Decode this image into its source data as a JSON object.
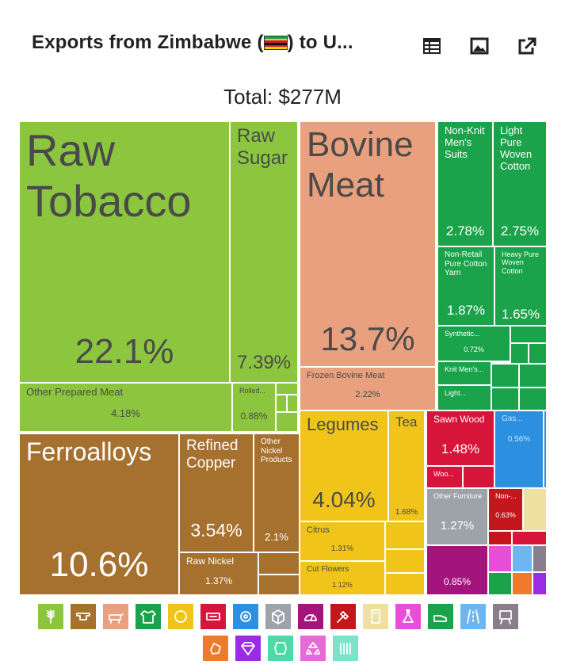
{
  "header": {
    "title_prefix": "Exports from Zimbabwe (",
    "title_suffix": ") to U...",
    "flag_icon": "zimbabwe-flag-icon",
    "buttons": [
      {
        "name": "table-view-icon"
      },
      {
        "name": "image-download-icon"
      },
      {
        "name": "open-external-icon"
      }
    ]
  },
  "total_label": "Total: $277M",
  "chart_data": {
    "type": "treemap",
    "total": "$277M",
    "tiles": [
      {
        "name": "Raw Tobacco",
        "share": "22.1%",
        "color": "#8CC63F",
        "sector": "Vegetable Products"
      },
      {
        "name": "Raw Sugar",
        "share": "7.39%",
        "color": "#8CC63F",
        "sector": "Vegetable Products"
      },
      {
        "name": "Other Prepared Meat",
        "share": "4.18%",
        "color": "#8CC63F",
        "sector": "Vegetable Products"
      },
      {
        "name": "Rolled...",
        "share": "0.88%",
        "color": "#8CC63F",
        "sector": "Vegetable Products"
      },
      {
        "name": "Bovine Meat",
        "share": "13.7%",
        "color": "#E9A07E",
        "sector": "Animal Products"
      },
      {
        "name": "Frozen Bovine Meat",
        "share": "2.22%",
        "color": "#E9A07E",
        "sector": "Animal Products"
      },
      {
        "name": "Non-Knit Men's Suits",
        "share": "2.78%",
        "color": "#1AA34A",
        "sector": "Textiles"
      },
      {
        "name": "Light Pure Woven Cotton",
        "share": "2.75%",
        "color": "#1AA34A",
        "sector": "Textiles"
      },
      {
        "name": "Non-Retail Pure Cotton Yarn",
        "share": "1.87%",
        "color": "#1AA34A",
        "sector": "Textiles"
      },
      {
        "name": "Heavy Pure Woven Cotton",
        "share": "1.65%",
        "color": "#1AA34A",
        "sector": "Textiles"
      },
      {
        "name": "Synthetic...",
        "share": "0.72%",
        "color": "#1AA34A",
        "sector": "Textiles"
      },
      {
        "name": "Knit Men's...",
        "share": "",
        "color": "#1AA34A",
        "sector": "Textiles"
      },
      {
        "name": "Light...",
        "share": "",
        "color": "#1AA34A",
        "sector": "Textiles"
      },
      {
        "name": "Ferroalloys",
        "share": "10.6%",
        "color": "#A6702E",
        "sector": "Metals"
      },
      {
        "name": "Refined Copper",
        "share": "3.54%",
        "color": "#A6702E",
        "sector": "Metals"
      },
      {
        "name": "Other Nickel Products",
        "share": "2.1%",
        "color": "#A6702E",
        "sector": "Metals"
      },
      {
        "name": "Raw Nickel",
        "share": "1.37%",
        "color": "#A6702E",
        "sector": "Metals"
      },
      {
        "name": "Legumes",
        "share": "4.04%",
        "color": "#F0C419",
        "sector": "Foodstuffs"
      },
      {
        "name": "Tea",
        "share": "1.68%",
        "color": "#F0C419",
        "sector": "Foodstuffs"
      },
      {
        "name": "Citrus",
        "share": "1.31%",
        "color": "#F0C419",
        "sector": "Foodstuffs"
      },
      {
        "name": "Cut Flowers",
        "share": "1.12%",
        "color": "#F0C419",
        "sector": "Foodstuffs"
      },
      {
        "name": "Sawn Wood",
        "share": "1.48%",
        "color": "#D7153A",
        "sector": "Wood Products"
      },
      {
        "name": "Woo...",
        "share": "",
        "color": "#D7153A",
        "sector": "Wood Products"
      },
      {
        "name": "Gas...",
        "share": "0.56%",
        "color": "#2D8FE0",
        "sector": "Mineral Products"
      },
      {
        "name": "Other Furniture",
        "share": "1.27%",
        "color": "#9EA3AA",
        "sector": "Miscellaneous"
      },
      {
        "name": "Non-...",
        "share": "0.63%",
        "color": "#C4161C",
        "sector": "Stone and Glass"
      },
      {
        "name": "",
        "share": "0.85%",
        "color": "#A3157C",
        "sector": "Instruments"
      }
    ]
  },
  "legend": [
    {
      "name": "vegetable-products-icon",
      "color": "#8CC63F"
    },
    {
      "name": "metals-icon",
      "color": "#A6702E"
    },
    {
      "name": "animal-products-icon",
      "color": "#E9A07E"
    },
    {
      "name": "textiles-icon",
      "color": "#1AA34A"
    },
    {
      "name": "foodstuffs-icon",
      "color": "#F0C419"
    },
    {
      "name": "wood-products-icon",
      "color": "#D7153A"
    },
    {
      "name": "machines-icon",
      "color": "#2D8FE0"
    },
    {
      "name": "miscellaneous-icon",
      "color": "#9EA3AA"
    },
    {
      "name": "instruments-icon",
      "color": "#A3157C"
    },
    {
      "name": "stone-and-glass-icon",
      "color": "#C4161C"
    },
    {
      "name": "paper-goods-icon",
      "color": "#EFE0A0"
    },
    {
      "name": "chemical-products-icon",
      "color": "#E84FD8"
    },
    {
      "name": "footwear-icon",
      "color": "#1AA34A"
    },
    {
      "name": "transportation-icon",
      "color": "#6DB6F2"
    },
    {
      "name": "arts-and-antiques-icon",
      "color": "#8A7E8E"
    },
    {
      "name": "mineral-products-icon",
      "color": "#EF7A2C"
    },
    {
      "name": "precious-metals-icon",
      "color": "#9C2BE4"
    },
    {
      "name": "animal-hides-icon",
      "color": "#4FD9A9"
    },
    {
      "name": "plastics-and-rubbers-icon",
      "color": "#E56BD6"
    },
    {
      "name": "weapons-icon",
      "color": "#7BE3C9"
    }
  ]
}
